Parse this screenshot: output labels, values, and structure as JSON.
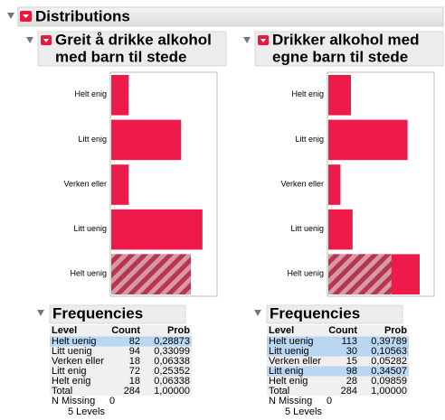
{
  "header": {
    "title": "Distributions"
  },
  "panels": [
    {
      "title": [
        "Greit å drikke alkohol",
        "med barn til stede"
      ],
      "xlim": [
        0,
        110
      ],
      "selected": [
        82,
        0,
        0,
        0,
        0
      ],
      "frequencies": {
        "title": "Frequencies",
        "columns": [
          "Level",
          "Count",
          "Prob"
        ],
        "rows": [
          [
            "Helt uenig",
            82,
            "0,28873"
          ],
          [
            "Litt uenig",
            94,
            "0,33099"
          ],
          [
            "Verken eller",
            18,
            "0,06338"
          ],
          [
            "Litt enig",
            72,
            "0,25352"
          ],
          [
            "Helt enig",
            18,
            "0,06338"
          ]
        ],
        "highlighted": [
          true,
          false,
          false,
          false,
          false
        ],
        "total": [
          "Total",
          284,
          "1,00000"
        ],
        "missing": [
          "N Missing",
          0
        ],
        "levels": "5 Levels"
      }
    },
    {
      "title": [
        "Drikker alkohol med",
        "egne barn til stede"
      ],
      "xlim": [
        0,
        132
      ],
      "selected": [
        78,
        0,
        0,
        0,
        0
      ],
      "frequencies": {
        "title": "Frequencies",
        "columns": [
          "Level",
          "Count",
          "Prob"
        ],
        "rows": [
          [
            "Helt uenig",
            113,
            "0,39789"
          ],
          [
            "Litt uenig",
            30,
            "0,10563"
          ],
          [
            "Verken eller",
            15,
            "0,05282"
          ],
          [
            "Litt enig",
            98,
            "0,34507"
          ],
          [
            "Helt enig",
            28,
            "0,09859"
          ]
        ],
        "highlighted": [
          true,
          true,
          false,
          true,
          false
        ],
        "total": [
          "Total",
          284,
          "1,00000"
        ],
        "missing": [
          "N Missing",
          0
        ],
        "levels": "5 Levels"
      }
    }
  ]
}
